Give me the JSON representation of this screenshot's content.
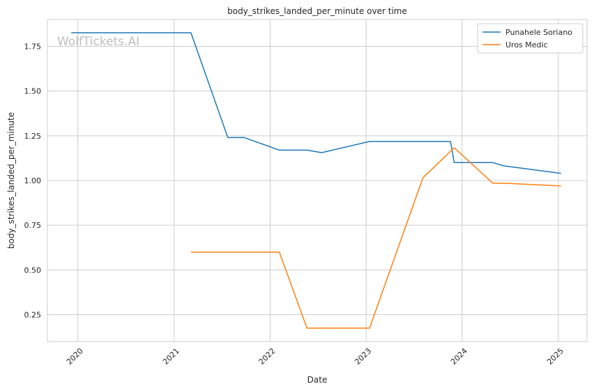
{
  "chart_data": {
    "type": "line",
    "title": "body_strikes_landed_per_minute over time",
    "xlabel": "Date",
    "ylabel": "body_strikes_landed_per_minute",
    "watermark": "WolfTickets.AI",
    "x_ticks": [
      "2020",
      "2021",
      "2022",
      "2023",
      "2024",
      "2025"
    ],
    "y_ticks": [
      "0.25",
      "0.50",
      "0.75",
      "1.00",
      "1.25",
      "1.50",
      "1.75"
    ],
    "xlim": [
      "2019-09-07",
      "2025-04-20"
    ],
    "ylim": [
      0.1,
      1.9
    ],
    "grid": true,
    "legend_position": "top-right",
    "series": [
      {
        "name": "Punahele Soriano",
        "color": "#1f77b4",
        "points": [
          {
            "x": "2019-12-07",
            "y": 1.826
          },
          {
            "x": "2021-03-06",
            "y": 1.826
          },
          {
            "x": "2021-07-24",
            "y": 1.24
          },
          {
            "x": "2021-09-25",
            "y": 1.24
          },
          {
            "x": "2022-02-05",
            "y": 1.17
          },
          {
            "x": "2022-05-21",
            "y": 1.17
          },
          {
            "x": "2022-07-16",
            "y": 1.156
          },
          {
            "x": "2023-01-14",
            "y": 1.218
          },
          {
            "x": "2023-11-18",
            "y": 1.218
          },
          {
            "x": "2023-12-02",
            "y": 1.1
          },
          {
            "x": "2024-04-27",
            "y": 1.1
          },
          {
            "x": "2024-06-08",
            "y": 1.082
          },
          {
            "x": "2025-01-11",
            "y": 1.04
          }
        ]
      },
      {
        "name": "Uros Medic",
        "color": "#ff7f0e",
        "points": [
          {
            "x": "2021-03-06",
            "y": 0.6
          },
          {
            "x": "2022-02-05",
            "y": 0.6
          },
          {
            "x": "2022-05-21",
            "y": 0.175
          },
          {
            "x": "2023-01-14",
            "y": 0.175
          },
          {
            "x": "2023-08-05",
            "y": 1.015
          },
          {
            "x": "2023-12-02",
            "y": 1.183
          },
          {
            "x": "2024-04-27",
            "y": 0.985
          },
          {
            "x": "2024-06-08",
            "y": 0.985
          },
          {
            "x": "2025-01-11",
            "y": 0.97
          }
        ]
      }
    ]
  }
}
